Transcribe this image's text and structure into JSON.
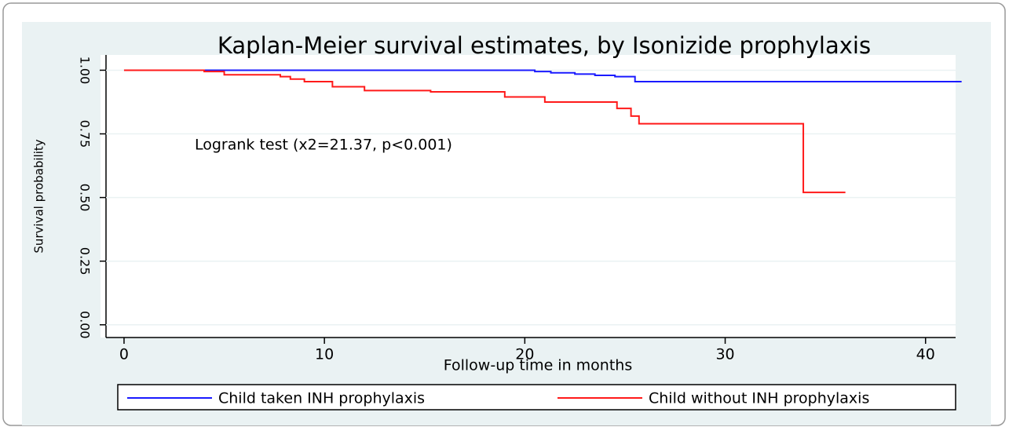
{
  "chart_data": {
    "type": "line",
    "drawstyle": "steps-post",
    "title": "Kaplan-Meier survival estimates, by Isonizide prophylaxis",
    "xlabel": "Follow-up time in months",
    "ylabel": "Survival probability",
    "annotation": "Logrank test (x2=21.37, p<0.001)",
    "xlim": [
      -0.9,
      41.5
    ],
    "xticks": [
      0,
      10,
      20,
      30,
      40
    ],
    "ylim": [
      -0.05,
      1.06
    ],
    "yticks": [
      {
        "value": 0,
        "label": "0.00"
      },
      {
        "value": 0.25,
        "label": "0.25"
      },
      {
        "value": 0.5,
        "label": "0.50"
      },
      {
        "value": 0.75,
        "label": "0.75"
      },
      {
        "value": 1,
        "label": "1.00"
      }
    ],
    "series": [
      {
        "name": "Child taken INH prophylaxis",
        "color": "#1a1aff",
        "x": [
          0,
          20.5,
          21.3,
          22.5,
          23.5,
          24.5,
          25.5,
          41.8
        ],
        "values": [
          1,
          0.995,
          0.99,
          0.985,
          0.98,
          0.975,
          0.955,
          0.955
        ]
      },
      {
        "name": "Child without INH prophylaxis",
        "color": "#ff1a1a",
        "x": [
          0,
          4,
          5,
          7.8,
          8.3,
          9,
          10.4,
          12,
          15.3,
          19,
          21,
          24.6,
          25.3,
          25.7,
          33.9,
          36
        ],
        "values": [
          1,
          0.995,
          0.982,
          0.975,
          0.965,
          0.955,
          0.935,
          0.92,
          0.915,
          0.895,
          0.875,
          0.85,
          0.82,
          0.79,
          0.52,
          0.52
        ]
      }
    ]
  }
}
